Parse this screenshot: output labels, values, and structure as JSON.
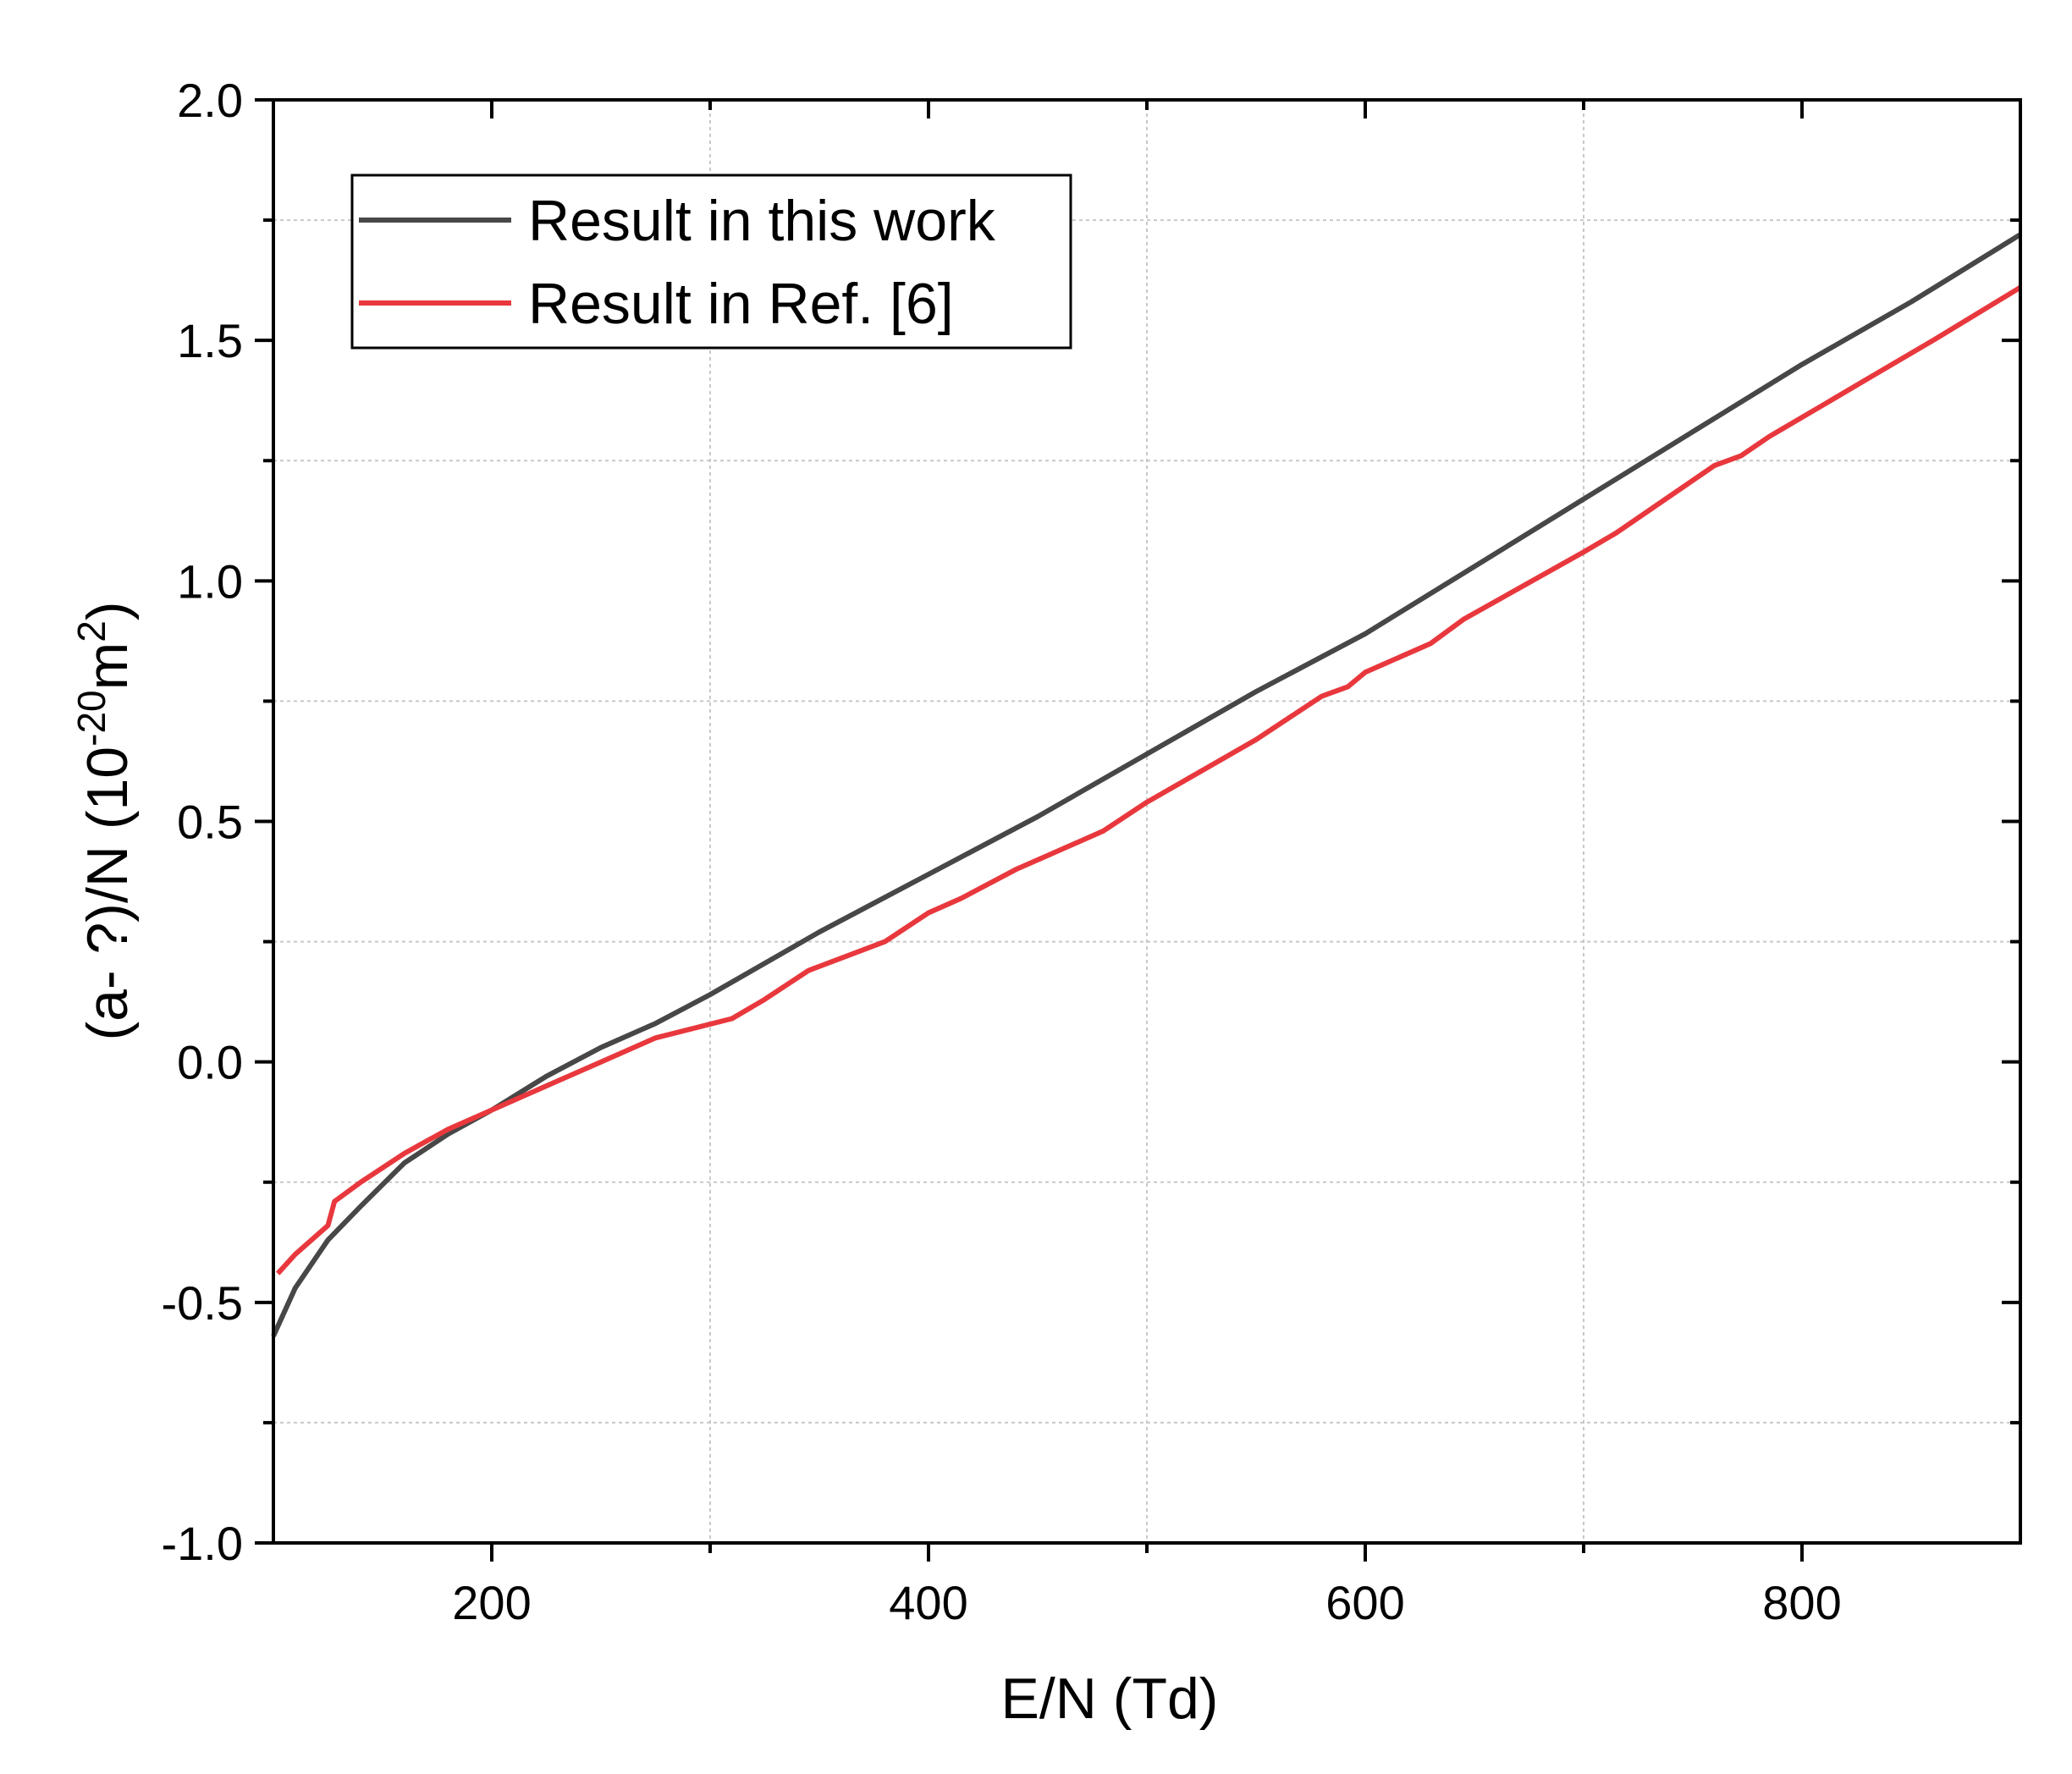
{
  "chart_data": {
    "type": "line",
    "xlabel": "E/N (Td)",
    "ylabel_parts": [
      "(a- ?)/N (10",
      "-20",
      "m",
      "2",
      ")"
    ],
    "xlim": [
      100,
      900
    ],
    "ylim": [
      -1.0,
      2.0
    ],
    "xticks": [
      200,
      400,
      600,
      800
    ],
    "yticks": [
      {
        "value": -1.0,
        "label": "-1.0"
      },
      {
        "value": -0.5,
        "label": "-0.5"
      },
      {
        "value": 0.0,
        "label": "0.0"
      },
      {
        "value": 0.5,
        "label": "0.5"
      },
      {
        "value": 1.0,
        "label": "1.0"
      },
      {
        "value": 1.5,
        "label": "1.5"
      },
      {
        "value": 2.0,
        "label": "2.0"
      }
    ],
    "x_minor_ticks": [
      300,
      500,
      700
    ],
    "y_minor_ticks": [
      -0.75,
      -0.25,
      0.25,
      0.75,
      1.25,
      1.75
    ],
    "grid": true,
    "legend": "upper left",
    "series": [
      {
        "name": "Result in this work",
        "color": "#474747",
        "x": [
          100,
          110,
          125,
          140,
          160,
          180,
          200,
          225,
          250,
          275,
          300,
          350,
          400,
          450,
          500,
          550,
          600,
          650,
          700,
          750,
          800,
          850,
          900
        ],
        "values": [
          -0.57,
          -0.47,
          -0.37,
          -0.3,
          -0.21,
          -0.15,
          -0.1,
          -0.03,
          0.03,
          0.08,
          0.14,
          0.27,
          0.39,
          0.51,
          0.64,
          0.77,
          0.89,
          1.03,
          1.17,
          1.31,
          1.45,
          1.58,
          1.72
        ]
      },
      {
        "name": "Result in Ref. [6]",
        "color": "#e8383d",
        "x": [
          102,
          110,
          125,
          128,
          140,
          160,
          180,
          200,
          230,
          250,
          275,
          310,
          325,
          345,
          380,
          400,
          415,
          440,
          480,
          500,
          550,
          580,
          592,
          600,
          630,
          645,
          700,
          715,
          760,
          772,
          785,
          815,
          830,
          860,
          900
        ],
        "values": [
          -0.44,
          -0.4,
          -0.34,
          -0.29,
          -0.25,
          -0.19,
          -0.14,
          -0.1,
          -0.04,
          0.0,
          0.05,
          0.09,
          0.13,
          0.19,
          0.25,
          0.31,
          0.34,
          0.4,
          0.48,
          0.54,
          0.67,
          0.76,
          0.78,
          0.81,
          0.87,
          0.92,
          1.06,
          1.1,
          1.24,
          1.26,
          1.3,
          1.38,
          1.42,
          1.5,
          1.61
        ]
      }
    ]
  }
}
